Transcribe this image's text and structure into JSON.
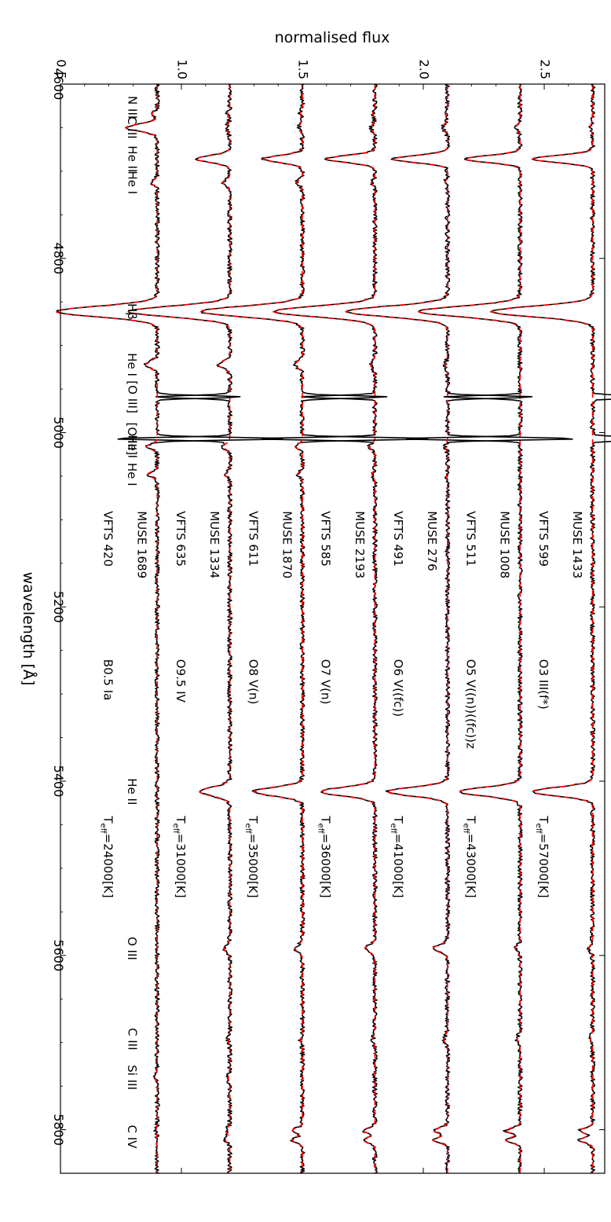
{
  "chart_data": {
    "type": "line",
    "xlabel": "normalised flux",
    "ylabel": "wavelength [Å]",
    "xlim": [
      0.5,
      2.75
    ],
    "ylim": [
      4600,
      5850
    ],
    "x_ticks": [
      "0.5",
      "1.0",
      "1.5",
      "2.0",
      "2.5"
    ],
    "y_ticks": [
      "4600",
      "4800",
      "5000",
      "5200",
      "5400",
      "5600",
      "5800"
    ],
    "line_ids": [
      {
        "label": "N III",
        "w": 4634
      },
      {
        "label": "C III",
        "w": 4650
      },
      {
        "label": "He II",
        "w": 4686
      },
      {
        "label": "He I",
        "w": 4713
      },
      {
        "label": "Hβ",
        "w": 4861
      },
      {
        "label": "He I",
        "w": 4922
      },
      {
        "label": "[O III]",
        "w": 4959
      },
      {
        "label": "[O III]",
        "w": 5007
      },
      {
        "label": "He I",
        "w": 5016
      },
      {
        "label": "He I",
        "w": 5048
      },
      {
        "label": "He II",
        "w": 5412
      },
      {
        "label": "O III",
        "w": 5592
      },
      {
        "label": "C III",
        "w": 5696
      },
      {
        "label": "Si III",
        "w": 5740
      },
      {
        "label": "C IV",
        "w": 5808
      }
    ],
    "series": [
      {
        "name": "MUSE 1433",
        "base": 2.7,
        "label2": "VFTS 599",
        "sptype": "O3 III(f*)",
        "teff": "57000"
      },
      {
        "name": "MUSE 1008",
        "base": 2.4,
        "label2": "VFTS 511",
        "sptype": "O5 V((n))((fc))z",
        "teff": "43000"
      },
      {
        "name": "MUSE 276",
        "base": 2.1,
        "label2": "VFTS 491",
        "sptype": "O6 V((fc))",
        "teff": "41000"
      },
      {
        "name": "MUSE 2193",
        "base": 1.8,
        "label2": "VFTS 585",
        "sptype": "O7 V(n)",
        "teff": "36000"
      },
      {
        "name": "MUSE 1870",
        "base": 1.5,
        "label2": "VFTS 611",
        "sptype": "O8 V(n)",
        "teff": "35000"
      },
      {
        "name": "MUSE 1334",
        "base": 1.2,
        "label2": "VFTS 635",
        "sptype": "O9.5 IV",
        "teff": "31000"
      },
      {
        "name": "MUSE 1689",
        "base": 0.9,
        "label2": "VFTS 420",
        "sptype": "B0.5 Ia",
        "teff": "24000"
      }
    ],
    "teff_prefix": "T",
    "teff_sub": "eff",
    "teff_unit": "[K]",
    "colors": {
      "observed": "#000000",
      "model": "#ff0000"
    }
  }
}
